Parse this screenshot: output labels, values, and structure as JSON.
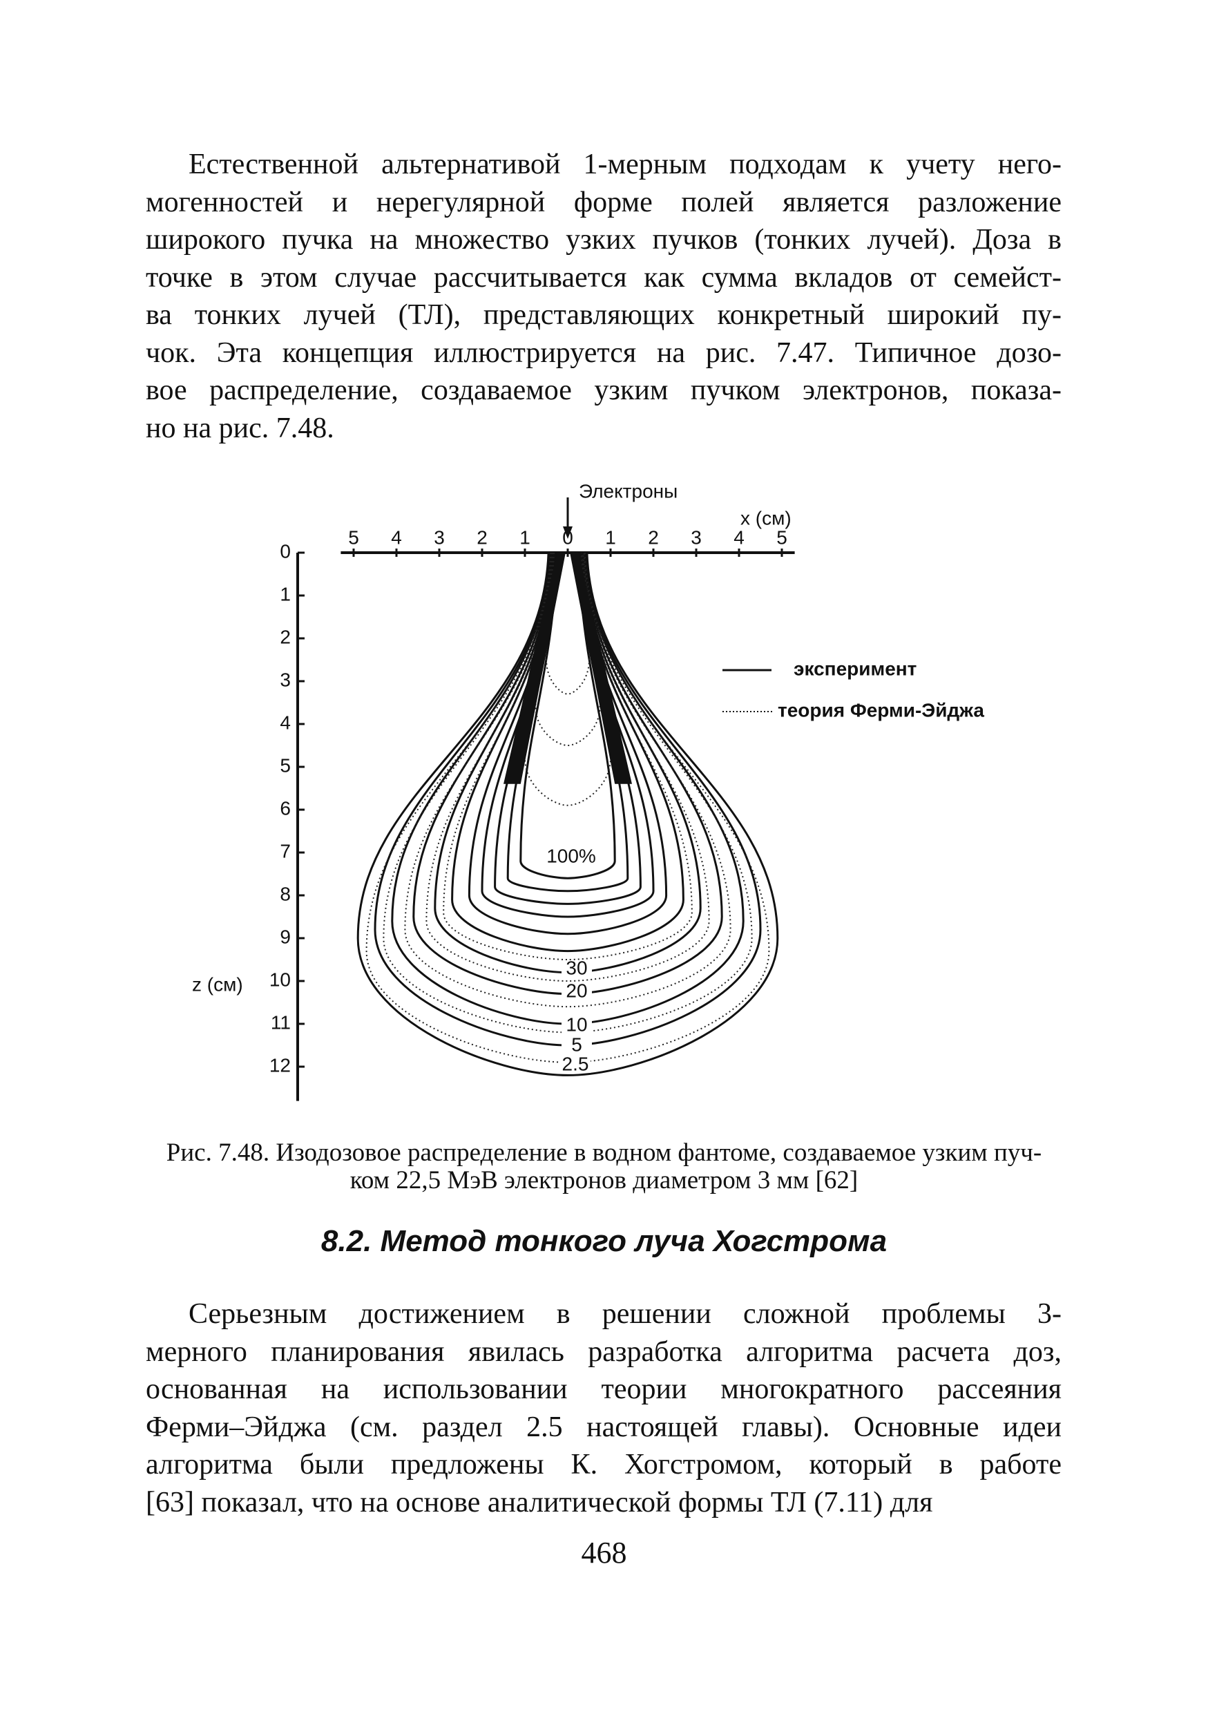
{
  "paragraphs": [
    {
      "lines": [
        "Естественной альтернативой 1-мерным подходам к учету него-",
        "могенностей и нерегулярной форме полей является разложение",
        "широкого пучка на множество узких пучков (тонких лучей). Доза в",
        "точке в этом случае рассчитывается как сумма вкладов от семейст-",
        "ва тонких лучей (ТЛ), представляющих конкретный широкий пу-",
        "чок. Эта концепция иллюстрируется на рис. 7.47. Типичное дозо-",
        "вое распределение, создаваемое узким пучком электронов, показа-",
        "но на рис. 7.48."
      ]
    },
    {
      "lines": [
        "Серьезным достижением в решении  сложной проблемы 3-",
        "мерного планирования явилась разработка алгоритма расчета доз,",
        "основанная на использовании теории многократного рассеяния",
        "Ферми–Эйджа (см. раздел 2.5 настоящей главы). Основные идеи",
        "алгоритма были предложены К. Хогстромом, который  в работе",
        "[63]  показал, что на основе аналитической формы ТЛ (7.11) для"
      ]
    }
  ],
  "figure": {
    "beam_label": "Электроны",
    "x_axis_label": "x (см)",
    "z_axis_label": "z (см)",
    "x_ticks": [
      5,
      4,
      3,
      2,
      1,
      0,
      1,
      2,
      3,
      4,
      5
    ],
    "z_ticks": [
      0,
      1,
      2,
      3,
      4,
      5,
      6,
      7,
      8,
      9,
      10,
      11,
      12
    ],
    "legend": [
      "эксперимент",
      "теория Ферми-Эйджа"
    ],
    "contour_labels": [
      "100%",
      "30",
      "20",
      "10",
      "5",
      "2.5"
    ]
  },
  "caption": {
    "lines": [
      "Рис. 7.48. Изодозовое распределение в водном фантоме, создаваемое узким пуч-",
      "ком  22,5 МэВ электронов диаметром 3 мм [62]"
    ]
  },
  "section_heading": "8.2. Метод тонкого луча Хогстрома",
  "page_number": "468"
}
